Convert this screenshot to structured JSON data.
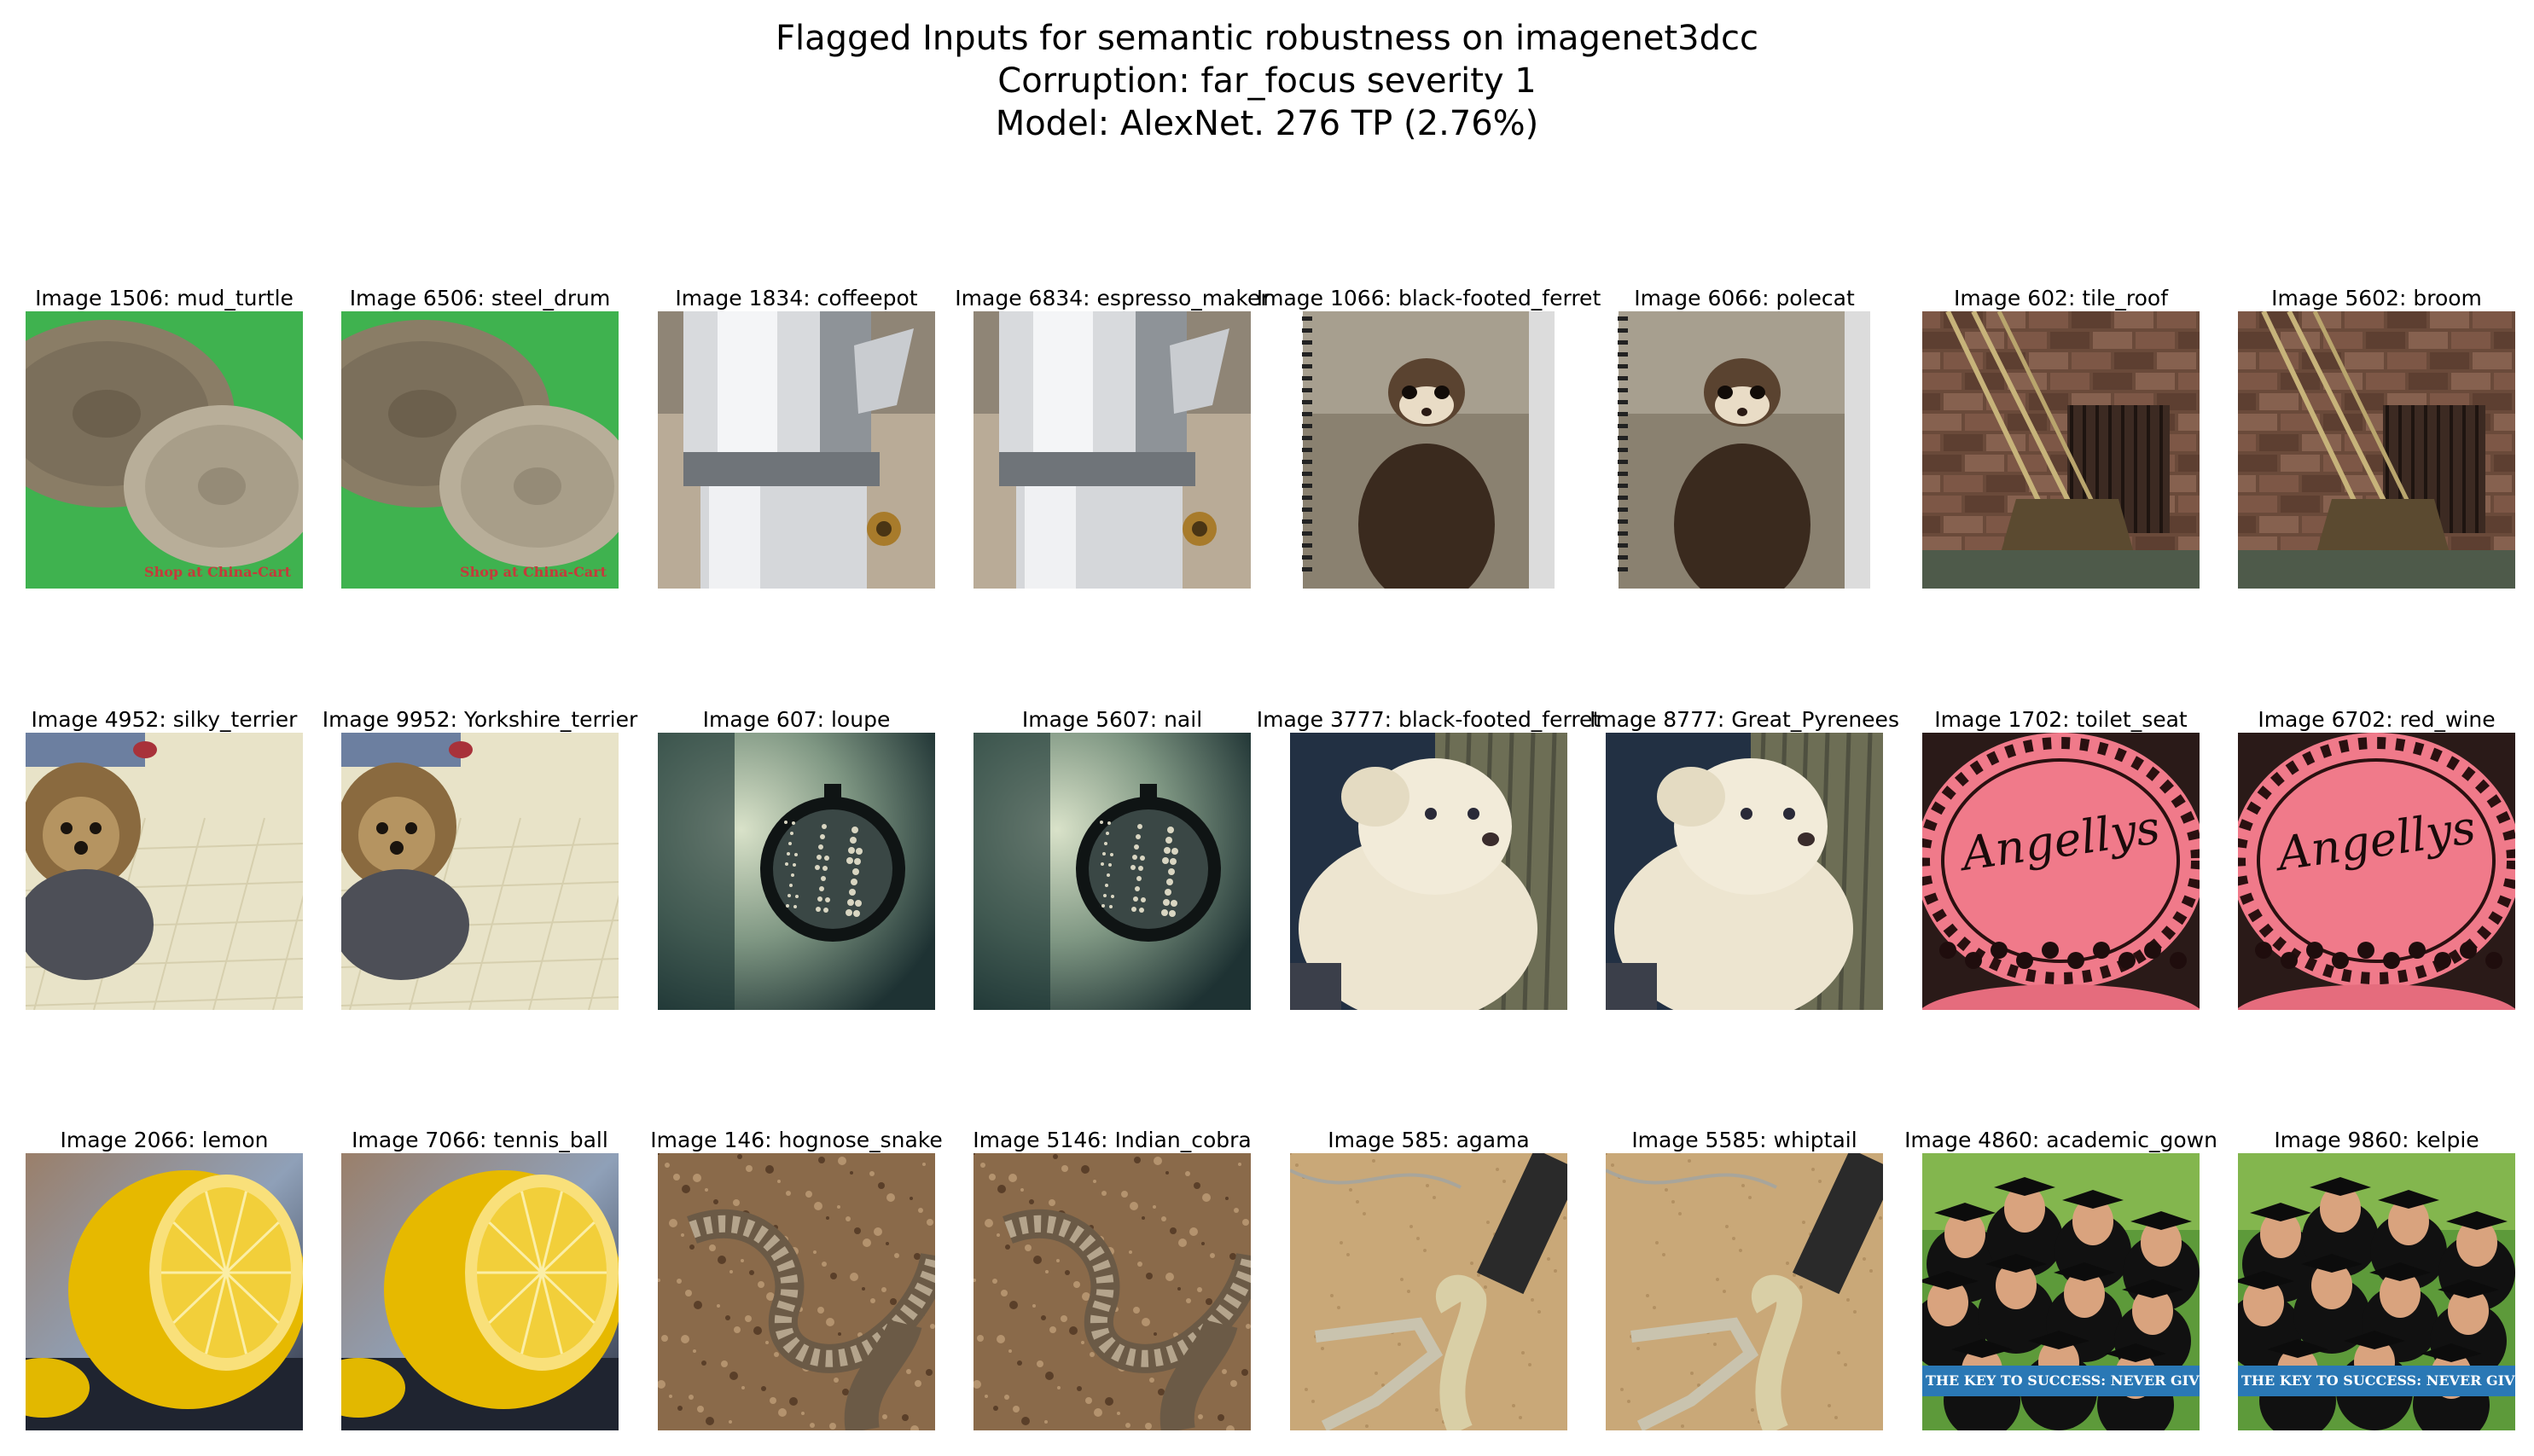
{
  "title": {
    "line1": "Flagged Inputs for semantic robustness on imagenet3dcc",
    "line2": "Corruption: far_focus severity 1",
    "line3": "Model: AlexNet. 276 TP (2.76%)"
  },
  "rows": [
    [
      {
        "caption": "Image 1506: mud_turtle",
        "scene": "cymbals",
        "watermark": "Shop at China-Cart"
      },
      {
        "caption": "Image 6506: steel_drum",
        "scene": "cymbals",
        "watermark": "Shop at China-Cart"
      },
      {
        "caption": "Image 1834: coffeepot",
        "scene": "moka-pot"
      },
      {
        "caption": "Image 6834: espresso_maker",
        "scene": "moka-pot"
      },
      {
        "caption": "Image 1066: black-footed_ferret",
        "scene": "ferret-notebook"
      },
      {
        "caption": "Image 6066: polecat",
        "scene": "ferret-notebook"
      },
      {
        "caption": "Image 602: tile_roof",
        "scene": "brooms-brick"
      },
      {
        "caption": "Image 5602: broom",
        "scene": "brooms-brick"
      }
    ],
    [
      {
        "caption": "Image 4952: silky_terrier",
        "scene": "terrier"
      },
      {
        "caption": "Image 9952: Yorkshire_terrier",
        "scene": "terrier"
      },
      {
        "caption": "Image 607: loupe",
        "scene": "loupe"
      },
      {
        "caption": "Image 5607: nail",
        "scene": "loupe"
      },
      {
        "caption": "Image 3777: black-footed_ferret",
        "scene": "puppy"
      },
      {
        "caption": "Image 8777: Great_Pyrenees",
        "scene": "puppy"
      },
      {
        "caption": "Image 1702: toilet_seat",
        "scene": "cake",
        "cake_text": "Angellys"
      },
      {
        "caption": "Image 6702: red_wine",
        "scene": "cake",
        "cake_text": "Angellys"
      }
    ],
    [
      {
        "caption": "Image 2066: lemon",
        "scene": "lemon"
      },
      {
        "caption": "Image 7066: tennis_ball",
        "scene": "lemon"
      },
      {
        "caption": "Image 146: hognose_snake",
        "scene": "snake-gravel"
      },
      {
        "caption": "Image 5146: Indian_cobra",
        "scene": "snake-gravel"
      },
      {
        "caption": "Image 585: agama",
        "scene": "lizard-sand"
      },
      {
        "caption": "Image 5585: whiptail",
        "scene": "lizard-sand"
      },
      {
        "caption": "Image 4860: academic_gown",
        "scene": "graduates",
        "banner": "THE KEY TO SUCCESS: NEVER GIVE UP"
      },
      {
        "caption": "Image 9860: kelpie",
        "scene": "graduates",
        "banner": "THE KEY TO SUCCESS: NEVER GIVE UP"
      }
    ]
  ]
}
